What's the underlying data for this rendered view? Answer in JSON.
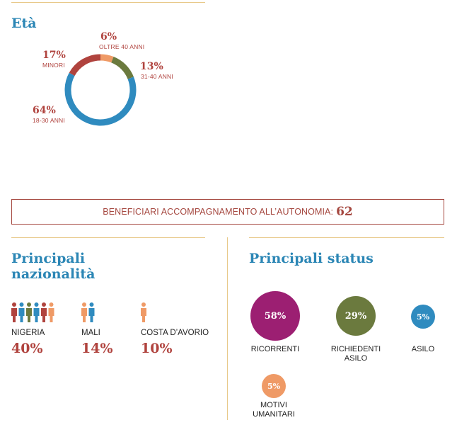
{
  "age": {
    "heading": "Età",
    "chart_data": {
      "type": "pie",
      "title": "Età",
      "series": [
        {
          "label": "OLTRE 40 ANNI",
          "pct_label": "6%",
          "value": 6,
          "color": "#ef9a66"
        },
        {
          "label": "31-40 ANNI",
          "pct_label": "13%",
          "value": 13,
          "color": "#6b7a3e"
        },
        {
          "label": "18-30 ANNI",
          "pct_label": "64%",
          "value": 64,
          "color": "#2f8bbf"
        },
        {
          "label": "MINORI",
          "pct_label": "17%",
          "value": 17,
          "color": "#b0433e"
        }
      ]
    }
  },
  "beneficiari": {
    "label": "BENEFICIARI ACCOMPAGNAMENTO ALL’AUTONOMIA:",
    "value": "62"
  },
  "nationalities": {
    "heading_line1": "Principali",
    "heading_line2": "nazionalità",
    "items": [
      {
        "name": "NIGERIA",
        "pct_label": "40%",
        "value": 40,
        "people_colors": [
          "#b0433e",
          "#2f8bbf",
          "#6b7a3e",
          "#2f8bbf",
          "#b0433e",
          "#ef9a66"
        ]
      },
      {
        "name": "MALI",
        "pct_label": "14%",
        "value": 14,
        "people_colors": [
          "#ef9a66",
          "#2f8bbf"
        ]
      },
      {
        "name": "COSTA D’AVORIO",
        "pct_label": "10%",
        "value": 10,
        "people_colors": [
          "#ef9a66"
        ]
      }
    ]
  },
  "status": {
    "heading": "Principali status",
    "items": [
      {
        "label_line1": "RICORRENTI",
        "label_line2": "",
        "pct_label": "58%",
        "value": 58,
        "color": "#9c1f72"
      },
      {
        "label_line1": "RICHIEDENTI",
        "label_line2": "ASILO",
        "pct_label": "29%",
        "value": 29,
        "color": "#6b7a3e"
      },
      {
        "label_line1": "ASILO",
        "label_line2": "",
        "pct_label": "5%",
        "value": 5,
        "color": "#2f8bbf"
      },
      {
        "label_line1": "MOTIVI",
        "label_line2": "UMANITARI",
        "pct_label": "5%",
        "value": 5,
        "color": "#ef9a66"
      }
    ]
  },
  "icons": [
    "person-icon"
  ]
}
